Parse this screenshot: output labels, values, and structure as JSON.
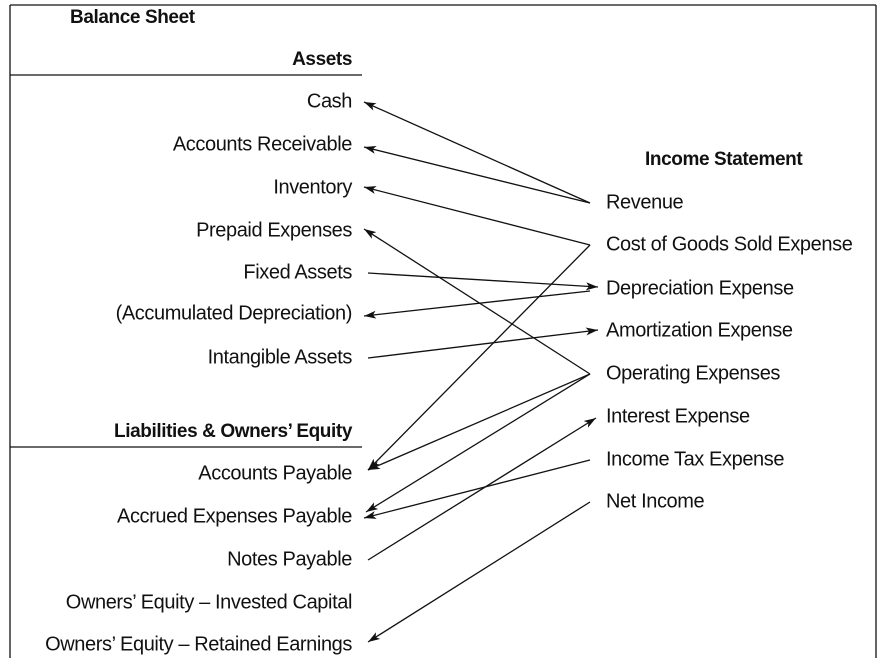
{
  "balance_sheet": {
    "title": "Balance Sheet",
    "assets": {
      "heading": "Assets",
      "items": [
        "Cash",
        "Accounts Receivable",
        "Inventory",
        "Prepaid Expenses",
        "Fixed Assets",
        "(Accumulated Depreciation)",
        "Intangible Assets"
      ]
    },
    "liabilities": {
      "heading": "Liabilities & Owners’ Equity",
      "items": [
        "Accounts Payable",
        "Accrued Expenses Payable",
        "Notes Payable",
        "Owners’ Equity – Invested Capital",
        "Owners’ Equity – Retained Earnings"
      ]
    }
  },
  "income_statement": {
    "title": "Income Statement",
    "items": [
      "Revenue",
      "Cost of Goods Sold Expense",
      "Depreciation Expense",
      "Amortization Expense",
      "Operating Expenses",
      "Interest Expense",
      "Income Tax Expense",
      "Net Income"
    ]
  }
}
